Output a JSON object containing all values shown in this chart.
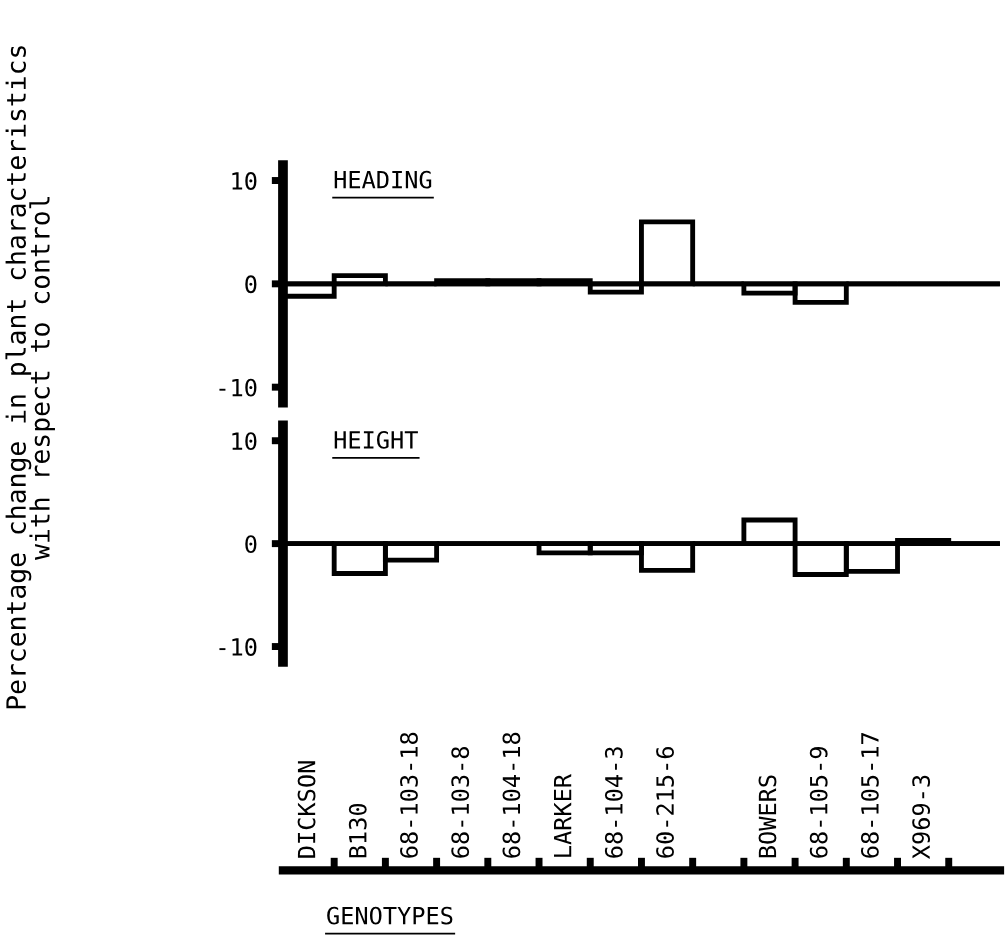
{
  "chart_data": [
    {
      "type": "bar",
      "title": "HEADING",
      "ylabel": "Percentage change in plant characteristics\nwith respect to control",
      "series": [
        {
          "color": "#000000",
          "values": [
            -1.2,
            0.8,
            0,
            0.3,
            0.3,
            0.3,
            -0.8,
            6.0,
            0,
            -0.9,
            -1.8,
            0,
            0,
            0
          ]
        }
      ],
      "ylim": [
        -11.5,
        11.5
      ],
      "yticks": [
        -10,
        0,
        10
      ],
      "tick_labels": "y",
      "grid": false,
      "legend": false,
      "ref_lines": [
        {
          "axis": "y",
          "value": 0,
          "color": "#000000"
        }
      ]
    },
    {
      "type": "bar",
      "title": "HEIGHT",
      "xlabel": "GENOTYPES",
      "categories": [
        "DICKSON",
        "B130",
        "68-103-18",
        "68-103-8",
        "68-104-18",
        "LARKER",
        "68-104-3",
        "60-215-6",
        null,
        "BOWERS",
        "68-105-9",
        "68-105-17",
        "X969-3",
        null
      ],
      "series": [
        {
          "color": "#000000",
          "values": [
            0,
            -2.9,
            -1.6,
            0,
            0,
            -0.9,
            -0.9,
            -2.6,
            0,
            2.3,
            -3.0,
            -2.7,
            0.3,
            0
          ]
        }
      ],
      "ylim": [
        -11.5,
        11.5
      ],
      "yticks": [
        -10,
        0,
        10
      ],
      "grid": false,
      "legend": false,
      "ref_lines": [
        {
          "axis": "y",
          "value": 0,
          "color": "#000000"
        }
      ]
    }
  ]
}
